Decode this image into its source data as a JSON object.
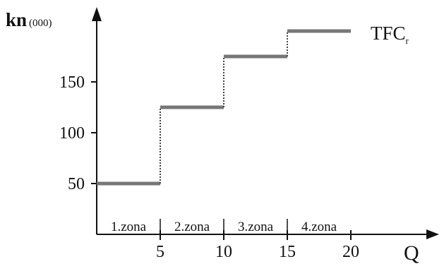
{
  "chart_data": {
    "type": "line",
    "title": "",
    "ylabel": "kn",
    "ylabel_unit": "(000)",
    "xlabel": "Q",
    "xlim": [
      0,
      20
    ],
    "ylim": [
      0,
      200
    ],
    "x_ticks": [
      5,
      10,
      15,
      20
    ],
    "y_ticks": [
      50,
      100,
      150
    ],
    "grid": false,
    "series": [
      {
        "name": "TFC",
        "name_subscript": "r",
        "steps": [
          {
            "x0": 0,
            "x1": 5,
            "y": 50
          },
          {
            "x0": 5,
            "x1": 10,
            "y": 125
          },
          {
            "x0": 10,
            "x1": 15,
            "y": 175
          },
          {
            "x0": 15,
            "x1": 20,
            "y": 200
          }
        ]
      }
    ],
    "zones": [
      {
        "label": "1.zona",
        "x0": 0,
        "x1": 5
      },
      {
        "label": "2.zona",
        "x0": 5,
        "x1": 10
      },
      {
        "label": "3.zona",
        "x0": 10,
        "x1": 15
      },
      {
        "label": "4.zona",
        "x0": 15,
        "x1": 20
      }
    ]
  }
}
